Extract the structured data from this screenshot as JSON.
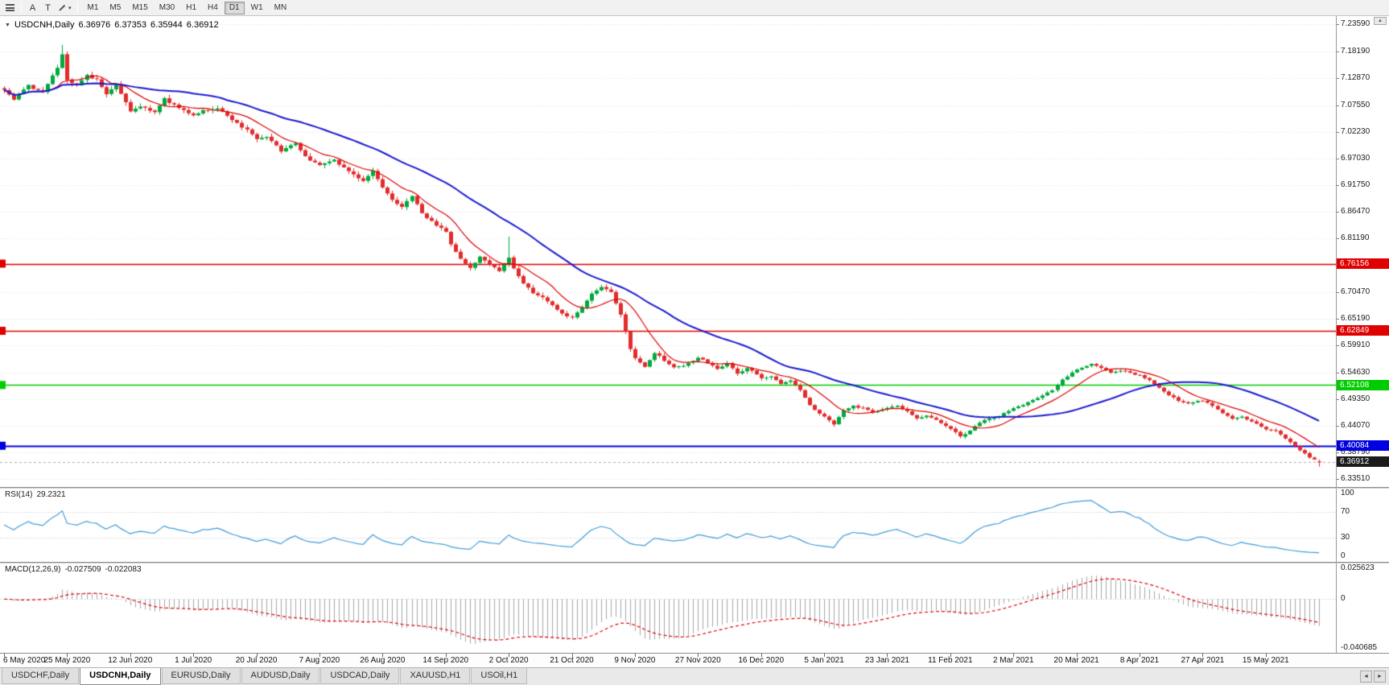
{
  "icons": {
    "collapse_triangle": "▼",
    "caret_down": "▾",
    "scroll_up": "▲",
    "tab_scroll_left": "◄",
    "tab_scroll_right": "►"
  },
  "toolbar": {
    "tools": {
      "a_label": "A",
      "t_label": "T"
    },
    "timeframes": [
      {
        "label": "M1"
      },
      {
        "label": "M5"
      },
      {
        "label": "M15"
      },
      {
        "label": "M30"
      },
      {
        "label": "H1"
      },
      {
        "label": "H4"
      },
      {
        "label": "D1",
        "active": true
      },
      {
        "label": "W1"
      },
      {
        "label": "MN"
      }
    ]
  },
  "chart": {
    "header": {
      "symbol": "USDCNH,Daily",
      "open": "6.36976",
      "high": "6.37353",
      "low": "6.35944",
      "close": "6.36912"
    },
    "price_scale": {
      "ticks": [
        {
          "label": "7.23590",
          "value": 7.2359
        },
        {
          "label": "7.18190",
          "value": 7.1819
        },
        {
          "label": "7.12870",
          "value": 7.1287
        },
        {
          "label": "7.07550",
          "value": 7.0755
        },
        {
          "label": "7.02230",
          "value": 7.0223
        },
        {
          "label": "6.97030",
          "value": 6.9703
        },
        {
          "label": "6.91750",
          "value": 6.9175
        },
        {
          "label": "6.86470",
          "value": 6.8647
        },
        {
          "label": "6.81190",
          "value": 6.8119
        },
        {
          "label": "6.70470",
          "value": 6.7047
        },
        {
          "label": "6.65190",
          "value": 6.6519
        },
        {
          "label": "6.59910",
          "value": 6.5991
        },
        {
          "label": "6.54630",
          "value": 6.5463
        },
        {
          "label": "6.49350",
          "value": 6.4935
        },
        {
          "label": "6.44070",
          "value": 6.4407
        },
        {
          "label": "6.38790",
          "value": 6.3879
        },
        {
          "label": "6.33510",
          "value": 6.3351
        }
      ],
      "hidden_grid_values": [
        6.7591
      ],
      "line_badges": [
        {
          "label": "6.76156",
          "value": 6.76156,
          "color": "#E00000"
        },
        {
          "label": "6.62849",
          "value": 6.62849,
          "color": "#E00000"
        },
        {
          "label": "6.52108",
          "value": 6.52108,
          "color": "#00CC00"
        },
        {
          "label": "6.40084",
          "value": 6.40084,
          "color": "#0000E0"
        }
      ],
      "current_badge": {
        "label": "6.36912",
        "value": 6.36912,
        "color": "#1B1B1B"
      }
    }
  },
  "rsi": {
    "name": "RSI(14)",
    "value": "29.2321",
    "period": 14,
    "levels": [
      70,
      30
    ],
    "scale": [
      {
        "label": "100",
        "value": 100
      },
      {
        "label": "70",
        "value": 70
      },
      {
        "label": "30",
        "value": 30
      },
      {
        "label": "0",
        "value": 0
      }
    ]
  },
  "macd": {
    "name": "MACD(12,26,9)",
    "value1": "-0.027509",
    "value2": "-0.022083",
    "scale": [
      {
        "label": "0.025623",
        "value": 0.025623
      },
      {
        "label": "0",
        "value": 0
      },
      {
        "label": "-0.040685",
        "value": -0.040685
      }
    ]
  },
  "date_axis": {
    "labels": [
      {
        "text": "6 May 2020",
        "bar": 0
      },
      {
        "text": "25 May 2020",
        "bar": 13
      },
      {
        "text": "12 Jun 2020",
        "bar": 26
      },
      {
        "text": "1 Jul 2020",
        "bar": 39
      },
      {
        "text": "20 Jul 2020",
        "bar": 52
      },
      {
        "text": "7 Aug 2020",
        "bar": 65
      },
      {
        "text": "26 Aug 2020",
        "bar": 78
      },
      {
        "text": "14 Sep 2020",
        "bar": 91
      },
      {
        "text": "2 Oct 2020",
        "bar": 104
      },
      {
        "text": "21 Oct 2020",
        "bar": 117
      },
      {
        "text": "9 Nov 2020",
        "bar": 130
      },
      {
        "text": "27 Nov 2020",
        "bar": 143
      },
      {
        "text": "16 Dec 2020",
        "bar": 156
      },
      {
        "text": "5 Jan 2021",
        "bar": 169
      },
      {
        "text": "23 Jan 2021",
        "bar": 182
      },
      {
        "text": "11 Feb 2021",
        "bar": 195
      },
      {
        "text": "2 Mar 2021",
        "bar": 208
      },
      {
        "text": "20 Mar 2021",
        "bar": 221
      },
      {
        "text": "8 Apr 2021",
        "bar": 234
      },
      {
        "text": "27 Apr 2021",
        "bar": 247
      },
      {
        "text": "15 May 2021",
        "bar": 260
      }
    ]
  },
  "tabs": [
    {
      "label": "USDCHF,Daily"
    },
    {
      "label": "USDCNH,Daily",
      "active": true
    },
    {
      "label": "EURUSD,Daily"
    },
    {
      "label": "AUDUSD,Daily"
    },
    {
      "label": "USDCAD,Daily"
    },
    {
      "label": "XAUUSD,H1"
    },
    {
      "label": "USOil,H1"
    }
  ],
  "chart_data": {
    "type": "candlestick",
    "symbol": "USDCNH",
    "timeframe": "Daily",
    "bars": 272,
    "seed": 42,
    "y_range": {
      "top": 7.2359,
      "bottom": 6.3351
    },
    "h_lines": [
      {
        "value": 6.76156,
        "color": "#E00000",
        "width": 1.4
      },
      {
        "value": 6.62849,
        "color": "#E00000",
        "width": 1.4
      },
      {
        "value": 6.52108,
        "color": "#00CC00",
        "width": 1.4
      },
      {
        "value": 6.40084,
        "color": "#0000E0",
        "width": 2
      }
    ],
    "wick_spikes": [
      {
        "bar": 12,
        "high": 7.195
      },
      {
        "bar": 104,
        "high": 6.815
      }
    ],
    "last_candle": {
      "o": 6.36976,
      "h": 6.37353,
      "l": 6.35944,
      "c": 6.36912
    },
    "ma_fast_period": 10,
    "ma_slow_period": 34,
    "price_anchors": [
      [
        0,
        7.105
      ],
      [
        2,
        7.085
      ],
      [
        5,
        7.115
      ],
      [
        8,
        7.1
      ],
      [
        11,
        7.15
      ],
      [
        12,
        7.178
      ],
      [
        13,
        7.125
      ],
      [
        15,
        7.118
      ],
      [
        17,
        7.135
      ],
      [
        19,
        7.125
      ],
      [
        21,
        7.095
      ],
      [
        23,
        7.115
      ],
      [
        26,
        7.065
      ],
      [
        28,
        7.075
      ],
      [
        31,
        7.06
      ],
      [
        33,
        7.088
      ],
      [
        35,
        7.075
      ],
      [
        39,
        7.055
      ],
      [
        41,
        7.065
      ],
      [
        44,
        7.07
      ],
      [
        47,
        7.045
      ],
      [
        50,
        7.025
      ],
      [
        52,
        7.005
      ],
      [
        54,
        7.012
      ],
      [
        57,
        6.985
      ],
      [
        60,
        7.0
      ],
      [
        62,
        6.975
      ],
      [
        65,
        6.955
      ],
      [
        68,
        6.965
      ],
      [
        71,
        6.945
      ],
      [
        74,
        6.925
      ],
      [
        76,
        6.945
      ],
      [
        78,
        6.91
      ],
      [
        80,
        6.885
      ],
      [
        82,
        6.875
      ],
      [
        84,
        6.895
      ],
      [
        86,
        6.86
      ],
      [
        88,
        6.845
      ],
      [
        91,
        6.825
      ],
      [
        92,
        6.8
      ],
      [
        94,
        6.77
      ],
      [
        96,
        6.755
      ],
      [
        98,
        6.775
      ],
      [
        100,
        6.76
      ],
      [
        102,
        6.745
      ],
      [
        104,
        6.775
      ],
      [
        105,
        6.755
      ],
      [
        107,
        6.725
      ],
      [
        109,
        6.705
      ],
      [
        111,
        6.695
      ],
      [
        113,
        6.68
      ],
      [
        115,
        6.665
      ],
      [
        117,
        6.655
      ],
      [
        119,
        6.675
      ],
      [
        121,
        6.7
      ],
      [
        123,
        6.715
      ],
      [
        125,
        6.705
      ],
      [
        127,
        6.66
      ],
      [
        128,
        6.625
      ],
      [
        129,
        6.59
      ],
      [
        130,
        6.575
      ],
      [
        132,
        6.555
      ],
      [
        134,
        6.585
      ],
      [
        136,
        6.57
      ],
      [
        138,
        6.555
      ],
      [
        140,
        6.56
      ],
      [
        143,
        6.575
      ],
      [
        145,
        6.565
      ],
      [
        147,
        6.555
      ],
      [
        149,
        6.565
      ],
      [
        151,
        6.545
      ],
      [
        153,
        6.555
      ],
      [
        156,
        6.535
      ],
      [
        158,
        6.54
      ],
      [
        160,
        6.525
      ],
      [
        162,
        6.53
      ],
      [
        164,
        6.51
      ],
      [
        166,
        6.48
      ],
      [
        168,
        6.465
      ],
      [
        169,
        6.46
      ],
      [
        171,
        6.445
      ],
      [
        173,
        6.47
      ],
      [
        175,
        6.48
      ],
      [
        177,
        6.475
      ],
      [
        179,
        6.465
      ],
      [
        182,
        6.475
      ],
      [
        184,
        6.48
      ],
      [
        186,
        6.47
      ],
      [
        188,
        6.455
      ],
      [
        190,
        6.46
      ],
      [
        192,
        6.45
      ],
      [
        194,
        6.44
      ],
      [
        195,
        6.435
      ],
      [
        197,
        6.42
      ],
      [
        199,
        6.43
      ],
      [
        201,
        6.445
      ],
      [
        203,
        6.455
      ],
      [
        205,
        6.46
      ],
      [
        207,
        6.47
      ],
      [
        208,
        6.475
      ],
      [
        210,
        6.48
      ],
      [
        212,
        6.49
      ],
      [
        214,
        6.5
      ],
      [
        216,
        6.51
      ],
      [
        218,
        6.53
      ],
      [
        220,
        6.545
      ],
      [
        222,
        6.555
      ],
      [
        224,
        6.565
      ],
      [
        226,
        6.555
      ],
      [
        228,
        6.545
      ],
      [
        230,
        6.55
      ],
      [
        232,
        6.545
      ],
      [
        234,
        6.54
      ],
      [
        236,
        6.53
      ],
      [
        238,
        6.515
      ],
      [
        240,
        6.5
      ],
      [
        242,
        6.49
      ],
      [
        244,
        6.485
      ],
      [
        247,
        6.49
      ],
      [
        249,
        6.48
      ],
      [
        251,
        6.465
      ],
      [
        253,
        6.455
      ],
      [
        255,
        6.46
      ],
      [
        257,
        6.45
      ],
      [
        259,
        6.44
      ],
      [
        260,
        6.435
      ],
      [
        262,
        6.43
      ],
      [
        264,
        6.415
      ],
      [
        266,
        6.4
      ],
      [
        268,
        6.385
      ],
      [
        269,
        6.376
      ],
      [
        270,
        6.372
      ],
      [
        271,
        6.36912
      ]
    ]
  },
  "colors": {
    "up_candle": "#00A93C",
    "down_candle": "#E22C2C",
    "ma_fast": "#E00000",
    "ma_slow": "#1A1ACF",
    "rsi_line": "#3E9BD8",
    "macd_hist": "#A6A6A6",
    "macd_signal": "#E00000",
    "grid": "#E4E4E4",
    "level_dotted": "#C4C4C4",
    "bid_line": "#ABABAB"
  }
}
